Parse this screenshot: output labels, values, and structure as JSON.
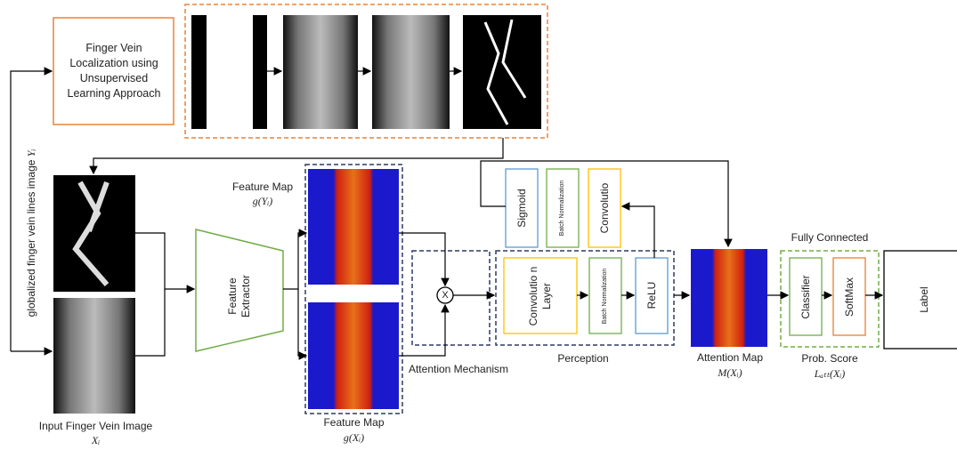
{
  "localization": {
    "label": "Finger Vein Localization using Unsupervised Learning Approach"
  },
  "vein_lines_image": {
    "label": "globalized finger vein lines image",
    "symbol": "Yᵢ"
  },
  "input_image": {
    "label": "Input Finger Vein Image",
    "symbol": "Xᵢ"
  },
  "feature_extractor": {
    "label": "Feature Extractor"
  },
  "feature_map_y": {
    "label": "Feature Map",
    "symbol": "g(Yᵢ)"
  },
  "feature_map_x": {
    "label": "Feature Map",
    "symbol": "g(Xᵢ)"
  },
  "multiply": {
    "label": "X"
  },
  "attention_mechanism": {
    "label": "Attention Mechanism"
  },
  "feedback": {
    "sigmoid": "Sigmoid",
    "batch_norm": "Batch Normalization",
    "convolution": "Convolutio"
  },
  "perception": {
    "label": "Perception",
    "convolution": "Convolutio n Layer",
    "batch_norm": "Batch Normalization",
    "relu": "ReLU"
  },
  "attention_map": {
    "label": "Attention Map",
    "symbol": "M(Xᵢ)"
  },
  "fully_connected": {
    "label": "Fully Connected",
    "classifier": "Classifier",
    "softmax": "SoftMax",
    "score": "Prob. Score",
    "symbol": "Lₐₜₜ(Xᵢ)"
  },
  "output": {
    "label": "Label"
  }
}
